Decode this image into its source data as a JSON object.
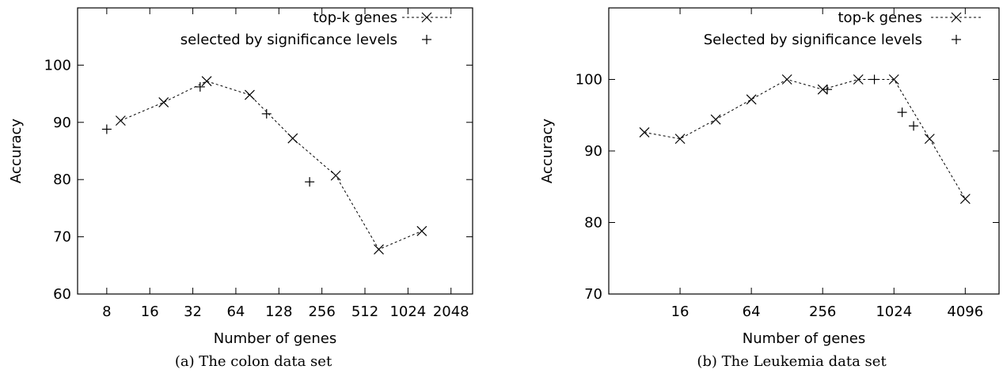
{
  "chart_data": [
    {
      "type": "line",
      "caption": "(a) The colon data set",
      "xlabel": "Number of genes",
      "ylabel": "Accuracy",
      "x_scale": "log2",
      "xlim": [
        5,
        2900
      ],
      "ylim": [
        60,
        110
      ],
      "x_ticks": [
        8,
        16,
        32,
        64,
        128,
        256,
        512,
        1024,
        2048
      ],
      "y_ticks": [
        60,
        70,
        80,
        90,
        100
      ],
      "legend_position": "top-right",
      "series": [
        {
          "name": "top-k genes",
          "style": "dashed-line-x-markers",
          "x": [
            10,
            20,
            40,
            80,
            160,
            320,
            640,
            1280
          ],
          "y": [
            90.3,
            93.5,
            97.2,
            94.8,
            87.2,
            80.7,
            67.8,
            71.0
          ]
        },
        {
          "name": "selected by significance levels",
          "style": "plus-markers",
          "x": [
            8,
            36,
            105,
            210
          ],
          "y": [
            88.8,
            96.2,
            91.5,
            79.6
          ]
        }
      ]
    },
    {
      "type": "line",
      "caption": "(b) The Leukemia data set",
      "xlabel": "Number of genes",
      "ylabel": "Accuracy",
      "x_scale": "log2",
      "xlim": [
        4,
        7900
      ],
      "ylim": [
        70,
        110
      ],
      "x_ticks": [
        16,
        64,
        256,
        1024,
        4096
      ],
      "y_ticks": [
        70,
        80,
        90,
        100
      ],
      "legend_position": "top-right",
      "series": [
        {
          "name": "top-k genes",
          "style": "dashed-line-x-markers",
          "x": [
            8,
            16,
            32,
            64,
            128,
            256,
            512,
            1024,
            2048,
            4096
          ],
          "y": [
            92.6,
            91.7,
            94.4,
            97.2,
            100,
            98.6,
            100,
            100,
            91.7,
            83.3
          ]
        },
        {
          "name": "Selected by significance levels",
          "style": "plus-markers",
          "x": [
            280,
            700,
            1200,
            1500
          ],
          "y": [
            98.6,
            100,
            95.4,
            93.5
          ]
        }
      ]
    }
  ]
}
